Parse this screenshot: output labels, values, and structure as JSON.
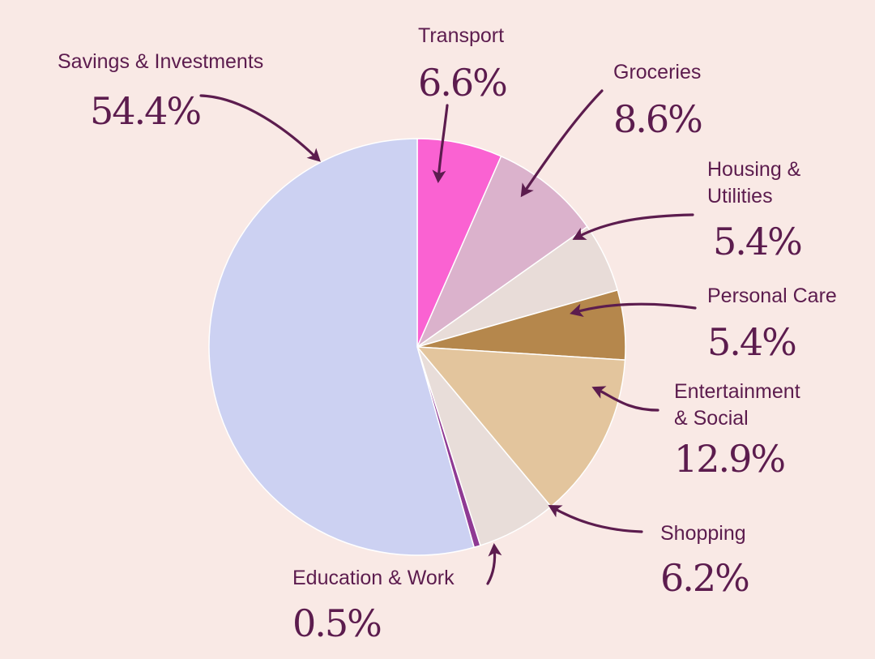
{
  "chart_data": {
    "type": "pie",
    "slices": [
      {
        "label": "Transport",
        "label_lines": [
          "Transport"
        ],
        "value": 6.6,
        "value_label": "6.6%",
        "color": "#fa62d2"
      },
      {
        "label": "Groceries",
        "label_lines": [
          "Groceries"
        ],
        "value": 8.6,
        "value_label": "8.6%",
        "color": "#dbb2cc"
      },
      {
        "label": "Housing & Utilities",
        "label_lines": [
          "Housing &",
          "Utilities"
        ],
        "value": 5.4,
        "value_label": "5.4%",
        "color": "#e8dcd8"
      },
      {
        "label": "Personal Care",
        "label_lines": [
          "Personal Care"
        ],
        "value": 5.4,
        "value_label": "5.4%",
        "color": "#b5874c"
      },
      {
        "label": "Entertainment & Social",
        "label_lines": [
          "Entertainment",
          "& Social"
        ],
        "value": 12.9,
        "value_label": "12.9%",
        "color": "#e3c59d"
      },
      {
        "label": "Shopping",
        "label_lines": [
          "Shopping"
        ],
        "value": 6.2,
        "value_label": "6.2%",
        "color": "#e8ddd9"
      },
      {
        "label": "Education & Work",
        "label_lines": [
          "Education & Work"
        ],
        "value": 0.5,
        "value_label": "0.5%",
        "color": "#8f3a94"
      },
      {
        "label": "Savings & Investments",
        "label_lines": [
          "Savings & Investments"
        ],
        "value": 54.4,
        "value_label": "54.4%",
        "color": "#ccd1f2"
      }
    ],
    "start_angle_deg": 0,
    "direction": "clockwise",
    "label_color": "#5c1c4e",
    "background": "#f9e9e5"
  }
}
